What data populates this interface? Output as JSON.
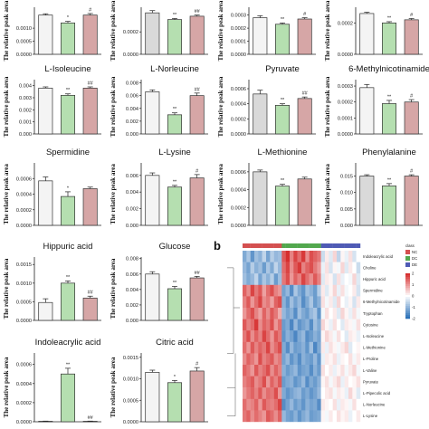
{
  "panel_letter": "b",
  "colors": {
    "NC": "#f4f4f4",
    "NC_alt": "#d9d9d9",
    "DC": "#b5dfb0",
    "DE": "#d6a6a6",
    "bar_stroke": "#333333",
    "heat_low": "#2c71b8",
    "heat_mid": "#ffffff",
    "heat_high": "#d62f2f"
  },
  "chart_data": [
    {
      "type": "bar",
      "title": "",
      "ylabel": "The relative peak area",
      "yticks": [
        "0.0010",
        "0.0005",
        "0.0000"
      ],
      "ylim": [
        0,
        0.0018
      ],
      "values": [
        0.0015,
        0.0012,
        0.0015
      ],
      "errors": [
        5e-05,
        6e-05,
        6e-05
      ],
      "nc_fill": "NC",
      "sig": [
        "",
        "*",
        "#"
      ]
    },
    {
      "type": "bar",
      "title": "",
      "ylabel": "The relative peak area",
      "yticks": [
        "0.0002",
        "0.0000"
      ],
      "ylim": [
        0,
        0.00042
      ],
      "values": [
        0.00037,
        0.00031,
        0.00034
      ],
      "errors": [
        2e-05,
        1e-05,
        1e-05
      ],
      "nc_fill": "NC_alt",
      "sig": [
        "",
        "**",
        "##"
      ]
    },
    {
      "type": "bar",
      "title": "",
      "ylabel": "The relative peak area",
      "yticks": [
        "0.0003",
        "0.0002",
        "0.0001",
        "0.0000"
      ],
      "ylim": [
        0,
        0.00036
      ],
      "values": [
        0.00028,
        0.00023,
        0.00027
      ],
      "errors": [
        1.5e-05,
        1e-05,
        1e-05
      ],
      "nc_fill": "NC",
      "sig": [
        "",
        "**",
        "#"
      ]
    },
    {
      "type": "bar",
      "title": "",
      "ylabel": "The relative peak area",
      "yticks": [
        "0.0002",
        "0.0000"
      ],
      "ylim": [
        0,
        0.0003
      ],
      "values": [
        0.00026,
        0.0002,
        0.00022
      ],
      "errors": [
        8e-06,
        8e-06,
        8e-06
      ],
      "nc_fill": "NC",
      "sig": [
        "",
        "**",
        "#"
      ]
    },
    {
      "type": "bar",
      "title": "L-Isoleucine",
      "ylabel": "The relative peak area",
      "yticks": [
        "0.004",
        "0.003",
        "0.002",
        "0.001",
        "0.000"
      ],
      "ylim": [
        0,
        0.0045
      ],
      "values": [
        0.0038,
        0.0032,
        0.0038
      ],
      "errors": [
        0.0001,
        0.00012,
        0.0001
      ],
      "nc_fill": "NC",
      "sig": [
        "",
        "**",
        "##"
      ]
    },
    {
      "type": "bar",
      "title": "L-Norleucine",
      "ylabel": "The relative peak area",
      "yticks": [
        "0.008",
        "0.006",
        "0.004",
        "0.002",
        "0.000"
      ],
      "ylim": [
        0,
        0.0085
      ],
      "values": [
        0.0066,
        0.003,
        0.006
      ],
      "errors": [
        0.0003,
        0.0003,
        0.0004
      ],
      "nc_fill": "NC",
      "sig": [
        "",
        "**",
        "##"
      ]
    },
    {
      "type": "bar",
      "title": "Pyruvate",
      "ylabel": "The relative peak area",
      "yticks": [
        "0.0006",
        "0.0004",
        "0.0002",
        "0.0000"
      ],
      "ylim": [
        0,
        0.00072
      ],
      "values": [
        0.00053,
        0.00038,
        0.00047
      ],
      "errors": [
        5e-05,
        2e-05,
        2e-05
      ],
      "nc_fill": "NC_alt",
      "sig": [
        "",
        "**",
        "##"
      ]
    },
    {
      "type": "bar",
      "title": "6-Methylnicotinamide",
      "ylabel": "The relative peak area",
      "yticks": [
        "0.0003",
        "0.0002",
        "0.0001",
        "0.0000"
      ],
      "ylim": [
        0,
        0.00034
      ],
      "values": [
        0.00029,
        0.00019,
        0.0002
      ],
      "errors": [
        2e-05,
        2e-05,
        1.5e-05
      ],
      "nc_fill": "NC",
      "sig": [
        "",
        "**",
        "#"
      ]
    },
    {
      "type": "bar",
      "title": "Spermidine",
      "ylabel": "The relative peak area",
      "yticks": [
        "0.0006",
        "0.0004",
        "0.0002",
        "0.0000"
      ],
      "ylim": [
        0,
        0.0008
      ],
      "values": [
        0.00057,
        0.00037,
        0.00047
      ],
      "errors": [
        5e-05,
        6e-05,
        2e-05
      ],
      "nc_fill": "NC",
      "sig": [
        "",
        "*",
        ""
      ]
    },
    {
      "type": "bar",
      "title": "L-Lysine",
      "ylabel": "The relative peak area",
      "yticks": [
        "0.006",
        "0.004",
        "0.002",
        "0.000"
      ],
      "ylim": [
        0,
        0.0075
      ],
      "values": [
        0.006,
        0.0046,
        0.0057
      ],
      "errors": [
        0.0003,
        0.0002,
        0.0004
      ],
      "nc_fill": "NC",
      "sig": [
        "",
        "**",
        "#"
      ]
    },
    {
      "type": "bar",
      "title": "L-Methionine",
      "ylabel": "The relative peak area",
      "yticks": [
        "0.0006",
        "0.0004",
        "0.0002",
        "0.0000"
      ],
      "ylim": [
        0,
        0.0007
      ],
      "values": [
        0.0006,
        0.00044,
        0.00052
      ],
      "errors": [
        2e-05,
        2e-05,
        2e-05
      ],
      "nc_fill": "NC_alt",
      "sig": [
        "",
        "**",
        ""
      ]
    },
    {
      "type": "bar",
      "title": "Phenylalanine",
      "ylabel": "The relative peak area",
      "yticks": [
        "0.015",
        "0.010",
        "0.005",
        "0.000"
      ],
      "ylim": [
        0,
        0.019
      ],
      "values": [
        0.015,
        0.012,
        0.015
      ],
      "errors": [
        0.0004,
        0.0007,
        0.0004
      ],
      "nc_fill": "NC_alt",
      "sig": [
        "",
        "**",
        "#"
      ]
    },
    {
      "type": "bar",
      "title": "Hippuric acid",
      "ylabel": "The relative peak area",
      "yticks": [
        "0.0015",
        "0.0010",
        "0.0005",
        "0.0000"
      ],
      "ylim": [
        0,
        0.0017
      ],
      "values": [
        0.00048,
        0.001,
        0.0006
      ],
      "errors": [
        0.0001,
        6e-05,
        5e-05
      ],
      "nc_fill": "NC",
      "sig": [
        "",
        "**",
        "##"
      ]
    },
    {
      "type": "bar",
      "title": "Glucose",
      "ylabel": "The relative peak area",
      "yticks": [
        "0.008",
        "0.006",
        "0.004",
        "0.002",
        "0.000"
      ],
      "ylim": [
        0,
        0.0082
      ],
      "values": [
        0.006,
        0.0041,
        0.0055
      ],
      "errors": [
        0.0003,
        0.0003,
        0.0002
      ],
      "nc_fill": "NC",
      "sig": [
        "",
        "**",
        "##"
      ]
    },
    {
      "type": "bar",
      "title": "Indoleacrylic acid",
      "ylabel": "The relative peak area",
      "yticks": [
        "0.0006",
        "0.0004",
        "0.0002",
        "0.0000"
      ],
      "ylim": [
        0,
        0.00072
      ],
      "values": [
        5e-06,
        0.0005,
        5e-06
      ],
      "errors": [
        2e-06,
        6e-05,
        2e-06
      ],
      "nc_fill": "NC",
      "sig": [
        "",
        "**",
        "##"
      ]
    },
    {
      "type": "bar",
      "title": "Citric acid",
      "ylabel": "The relative peak area",
      "yticks": [
        "0.0015",
        "0.0010",
        "0.0005",
        "0.0000"
      ],
      "ylim": [
        0,
        0.0016
      ],
      "values": [
        0.00115,
        0.00091,
        0.00118
      ],
      "errors": [
        5e-05,
        5e-05,
        8e-05
      ],
      "nc_fill": "NC",
      "sig": [
        "",
        "*",
        "#"
      ]
    },
    {
      "type": "heatmap",
      "legend_title": "class",
      "legend": [
        "NC",
        "DC",
        "DE"
      ],
      "scale_ticks": [
        "2",
        "1",
        "0",
        "-1",
        "-2"
      ],
      "rows": [
        "Indoleacrylic acid",
        "Choline",
        "Hippuric acid",
        "Spermidine",
        "6-Methylnicotinamide",
        "Tryptophan",
        "Cytosine",
        "L-Isoleucine",
        "L-Methionine",
        "L-Proline",
        "L-Valine",
        "Pyruvate",
        "L-Pipecolic acid",
        "L-Norleucine",
        "L-Lysine"
      ],
      "col_groups": [
        "NC",
        "NC",
        "NC",
        "NC",
        "NC",
        "NC",
        "NC",
        "NC",
        "NC",
        "NC",
        "DC",
        "DC",
        "DC",
        "DC",
        "DC",
        "DC",
        "DC",
        "DC",
        "DC",
        "DC",
        "DE",
        "DE",
        "DE",
        "DE",
        "DE",
        "DE",
        "DE",
        "DE",
        "DE",
        "DE"
      ],
      "values": [
        [
          -1.2,
          -0.8,
          -1.5,
          -0.9,
          -1.1,
          -0.6,
          -1.3,
          -0.7,
          -1.0,
          -0.9,
          1.6,
          2.0,
          1.2,
          1.8,
          1.4,
          1.9,
          1.1,
          1.7,
          1.5,
          1.3,
          -0.5,
          0.2,
          -0.3,
          0.4,
          -0.6,
          0.1,
          -0.2,
          0.3,
          -0.4,
          0.0
        ],
        [
          -1.0,
          -1.3,
          -0.7,
          -1.1,
          -0.9,
          -1.4,
          -0.8,
          -1.2,
          -0.6,
          -1.0,
          1.4,
          1.8,
          1.1,
          1.6,
          1.9,
          1.2,
          1.5,
          1.7,
          1.3,
          1.0,
          -0.2,
          0.3,
          -0.4,
          0.1,
          -0.1,
          0.4,
          -0.3,
          0.2,
          0.0,
          -0.5
        ],
        [
          -0.9,
          -1.2,
          -1.0,
          -0.6,
          -1.3,
          -0.8,
          -1.1,
          -0.7,
          -1.4,
          -0.9,
          1.3,
          1.7,
          1.0,
          1.5,
          1.2,
          1.8,
          1.4,
          1.1,
          1.6,
          1.2,
          -0.3,
          0.2,
          0.1,
          -0.4,
          0.3,
          -0.2,
          0.0,
          -0.1,
          0.4,
          -0.3
        ],
        [
          1.5,
          1.1,
          1.8,
          1.3,
          1.6,
          0.9,
          1.4,
          1.7,
          1.2,
          1.0,
          -1.3,
          -1.0,
          -1.6,
          -0.8,
          -1.2,
          -1.5,
          -0.9,
          -1.1,
          -1.4,
          -0.7,
          0.2,
          -0.3,
          0.1,
          0.4,
          -0.2,
          0.3,
          -0.1,
          0.0,
          0.2,
          -0.4
        ],
        [
          1.2,
          1.6,
          1.0,
          1.4,
          1.8,
          1.1,
          1.3,
          0.9,
          1.5,
          1.7,
          -1.1,
          -1.5,
          -0.9,
          -1.3,
          -1.0,
          -1.6,
          -1.2,
          -0.8,
          -1.4,
          -1.1,
          0.3,
          -0.1,
          0.2,
          -0.3,
          0.4,
          0.0,
          -0.2,
          0.1,
          -0.4,
          0.2
        ],
        [
          1.0,
          1.4,
          1.7,
          1.2,
          0.9,
          1.5,
          1.1,
          1.6,
          1.3,
          0.8,
          -1.0,
          -1.3,
          -1.1,
          -1.6,
          -0.9,
          -1.2,
          -1.4,
          -1.0,
          -0.8,
          -1.5,
          -0.1,
          0.3,
          0.0,
          0.2,
          -0.3,
          0.4,
          0.1,
          -0.2,
          0.3,
          -0.1
        ],
        [
          1.6,
          1.2,
          1.4,
          1.9,
          1.1,
          1.5,
          1.3,
          1.7,
          1.0,
          1.4,
          -1.4,
          -1.2,
          -1.7,
          -1.0,
          -1.5,
          -1.3,
          -1.1,
          -1.6,
          -0.9,
          -1.2,
          0.4,
          0.1,
          -0.2,
          0.3,
          0.0,
          -0.3,
          0.2,
          0.1,
          -0.1,
          0.3
        ],
        [
          1.3,
          1.7,
          1.1,
          1.5,
          1.2,
          1.8,
          1.4,
          1.0,
          1.6,
          1.3,
          -1.5,
          -1.1,
          -1.3,
          -1.7,
          -1.2,
          -1.0,
          -1.6,
          -1.4,
          -1.1,
          -1.3,
          0.1,
          0.4,
          0.2,
          -0.1,
          0.3,
          0.0,
          -0.3,
          0.2,
          0.1,
          -0.2
        ],
        [
          1.4,
          1.0,
          1.6,
          1.2,
          1.5,
          1.3,
          1.8,
          1.1,
          1.4,
          1.7,
          -1.2,
          -1.6,
          -1.0,
          -1.4,
          -1.3,
          -1.1,
          -1.5,
          -0.9,
          -1.7,
          -1.2,
          0.2,
          -0.2,
          0.3,
          0.1,
          -0.1,
          0.2,
          0.4,
          -0.3,
          0.0,
          0.1
        ],
        [
          1.1,
          1.5,
          1.3,
          1.0,
          1.7,
          1.2,
          1.4,
          1.6,
          1.1,
          1.3,
          -1.3,
          -1.0,
          -1.5,
          -1.2,
          -1.6,
          -1.1,
          -1.3,
          -1.4,
          -1.0,
          -1.5,
          -0.2,
          0.2,
          0.1,
          0.3,
          -0.2,
          0.1,
          0.0,
          0.3,
          -0.1,
          0.2
        ],
        [
          1.5,
          1.3,
          1.0,
          1.6,
          1.2,
          1.4,
          1.7,
          1.1,
          1.5,
          1.2,
          -1.1,
          -1.4,
          -1.2,
          -1.0,
          -1.5,
          -1.3,
          -1.2,
          -1.6,
          -1.1,
          -1.4,
          0.3,
          0.0,
          0.2,
          -0.2,
          0.1,
          0.3,
          -0.1,
          0.2,
          0.4,
          -0.1
        ],
        [
          1.2,
          1.4,
          1.6,
          1.1,
          1.3,
          1.7,
          1.0,
          1.5,
          1.2,
          1.6,
          -1.4,
          -1.2,
          -1.1,
          -1.5,
          -1.3,
          -1.0,
          -1.6,
          -1.2,
          -1.4,
          -1.1,
          0.1,
          0.3,
          -0.1,
          0.2,
          0.4,
          -0.2,
          0.2,
          0.0,
          0.1,
          0.3
        ],
        [
          1.0,
          1.3,
          1.5,
          1.2,
          1.6,
          1.1,
          1.4,
          1.3,
          1.7,
          1.0,
          -1.2,
          -1.5,
          -1.3,
          -1.1,
          -1.0,
          -1.4,
          -1.2,
          -1.5,
          -1.3,
          -1.0,
          0.0,
          0.2,
          0.3,
          -0.1,
          0.2,
          0.1,
          -0.2,
          0.4,
          0.1,
          -0.3
        ],
        [
          1.4,
          1.1,
          1.2,
          1.5,
          1.0,
          1.6,
          1.3,
          1.2,
          1.4,
          1.8,
          -1.6,
          -1.3,
          -1.0,
          -1.4,
          -1.2,
          -1.5,
          -1.1,
          -1.3,
          -1.2,
          -1.6,
          0.2,
          0.1,
          0.0,
          0.3,
          -0.2,
          0.2,
          0.1,
          -0.1,
          0.3,
          0.0
        ],
        [
          1.3,
          1.5,
          1.1,
          1.4,
          1.2,
          1.0,
          1.6,
          1.4,
          1.1,
          1.5,
          -1.0,
          -1.3,
          -1.4,
          -1.1,
          -1.5,
          -1.2,
          -1.0,
          -1.4,
          -1.3,
          -1.2,
          0.1,
          -0.1,
          0.2,
          0.0,
          0.3,
          0.1,
          0.2,
          -0.2,
          0.0,
          0.2
        ]
      ]
    }
  ]
}
